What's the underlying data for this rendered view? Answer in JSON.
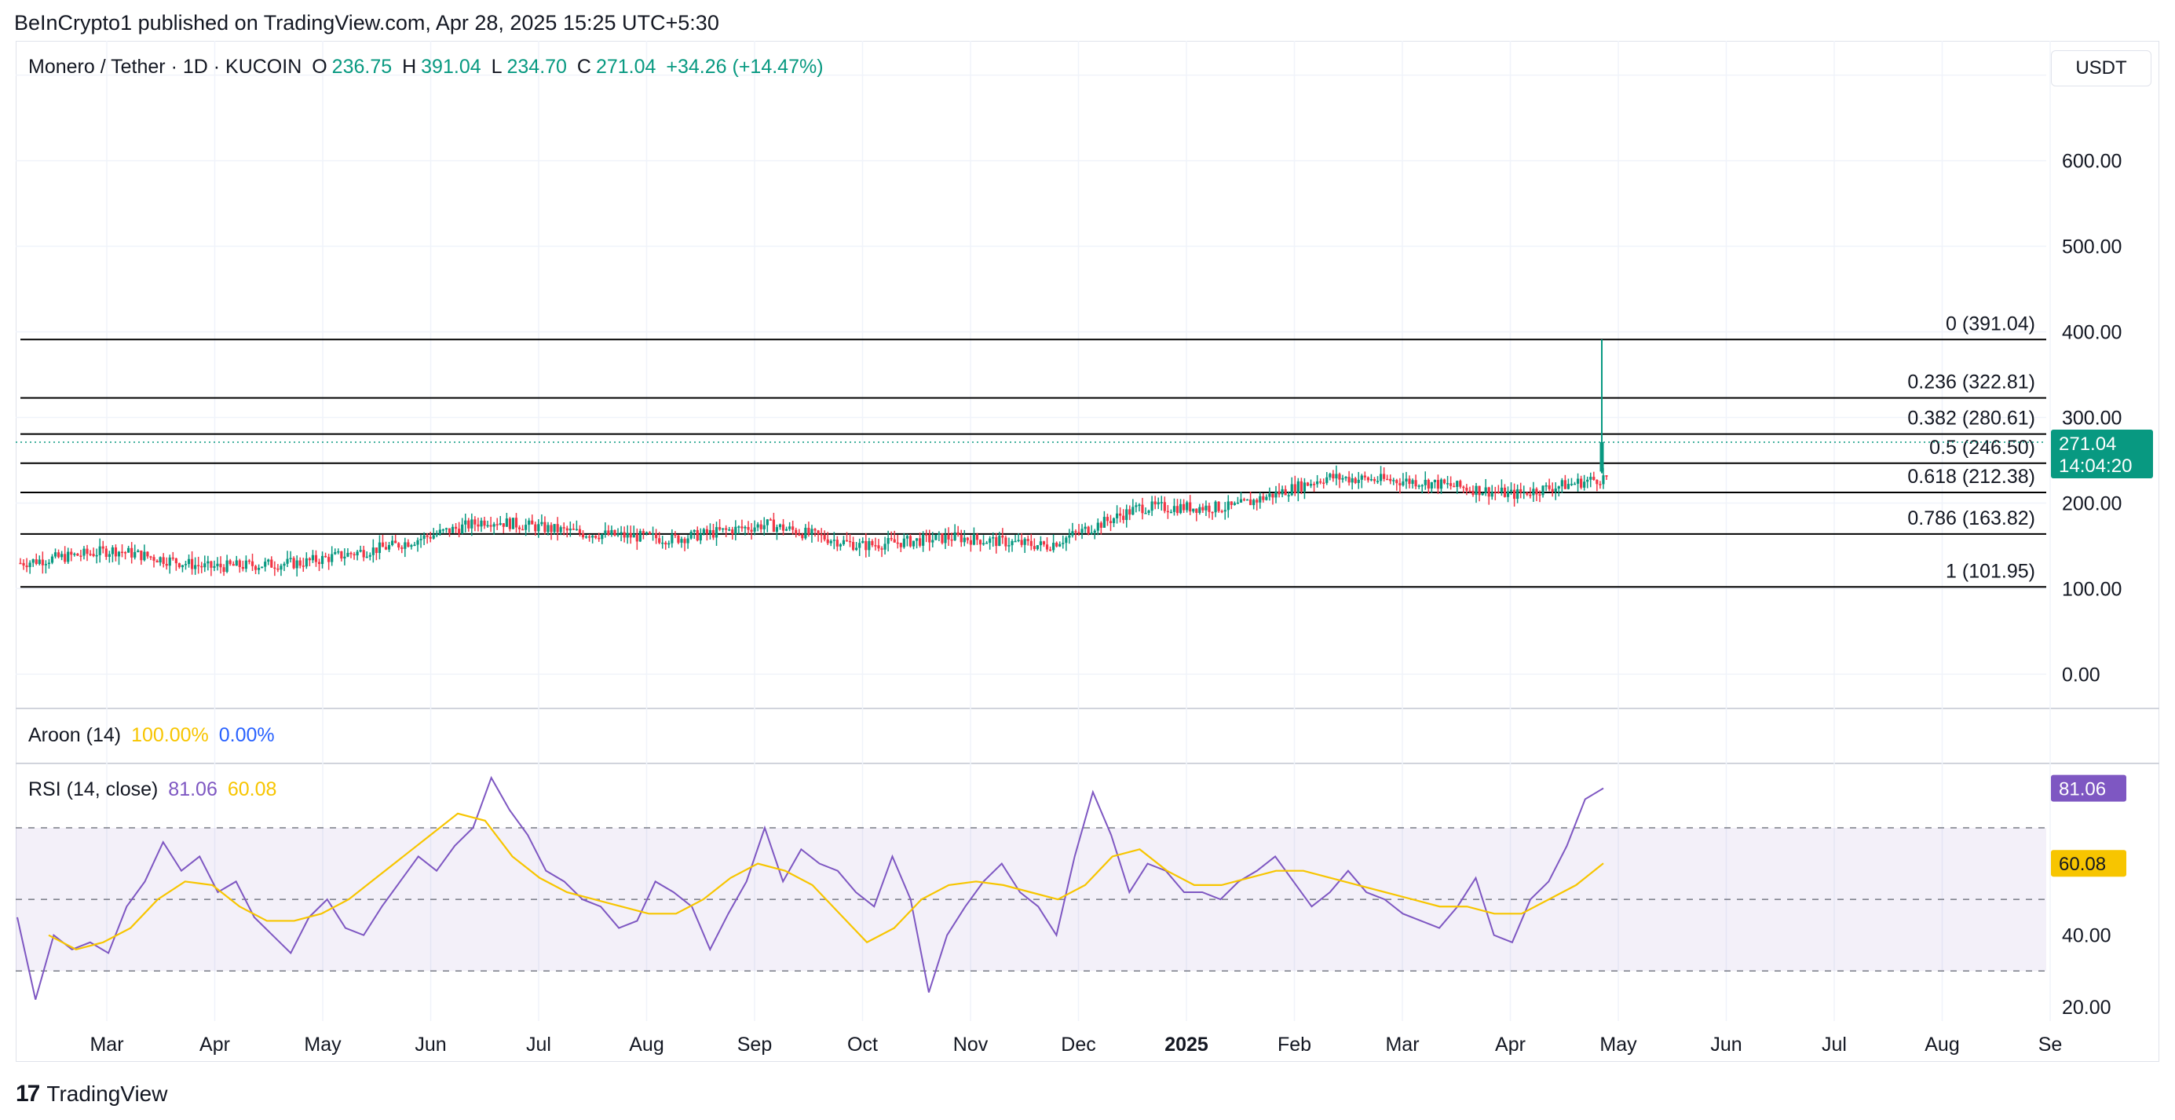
{
  "header": {
    "published_by": "BeInCrypto1 published on TradingView.com, Apr 28, 2025 15:25 UTC+5:30"
  },
  "symbol_bar": {
    "symbol": "Monero / Tether · 1D · KUCOIN",
    "open_label": "O",
    "open": "236.75",
    "high_label": "H",
    "high": "391.04",
    "low_label": "L",
    "low": "234.70",
    "close_label": "C",
    "close": "271.04",
    "change": "+34.26 (+14.47%)"
  },
  "currency": "USDT",
  "price_badge": {
    "price": "271.04",
    "countdown": "14:04:20",
    "color": "#089981"
  },
  "aroon": {
    "label": "Aroon (14)",
    "up": "100.00%",
    "down": "0.00%"
  },
  "rsi": {
    "label": "RSI (14, close)",
    "value": "81.06",
    "ma_value": "60.08"
  },
  "brand": {
    "name": "TradingView"
  },
  "colors": {
    "up": "#089981",
    "down": "#f23645",
    "rsi_line": "#7e57c2",
    "rsi_ma": "#f7c500",
    "aroon_up": "#f7c500",
    "aroon_down": "#2962ff",
    "fib_line": "#000000"
  },
  "chart_data": [
    {
      "type": "candlestick",
      "title": "Monero / Tether · 1D · KUCOIN",
      "y_ticks": [
        "0.00",
        "100.00",
        "200.00",
        "300.00",
        "400.00",
        "500.00",
        "600.00",
        "700.00"
      ],
      "ylim": [
        -40,
        740
      ],
      "x_ticks": [
        "Mar",
        "Apr",
        "May",
        "Jun",
        "Jul",
        "Aug",
        "Sep",
        "Oct",
        "Nov",
        "Dec",
        "2025",
        "Feb",
        "Mar",
        "Apr",
        "May",
        "Jun",
        "Jul",
        "Aug",
        "Se"
      ],
      "fibonacci": [
        {
          "label": "0 (391.04)",
          "value": 391.04
        },
        {
          "label": "0.236 (322.81)",
          "value": 322.81
        },
        {
          "label": "0.382 (280.61)",
          "value": 280.61
        },
        {
          "label": "0.5 (246.50)",
          "value": 246.5
        },
        {
          "label": "0.618 (212.38)",
          "value": 212.38
        },
        {
          "label": "0.786 (163.82)",
          "value": 163.82
        },
        {
          "label": "1 (101.95)",
          "value": 101.95
        }
      ],
      "price_path": [
        {
          "month": "Feb",
          "price": 130
        },
        {
          "month": "Mar",
          "price": 145
        },
        {
          "month": "Apr",
          "price": 125
        },
        {
          "month": "May",
          "price": 130
        },
        {
          "month": "Jun",
          "price": 150
        },
        {
          "month": "Jun",
          "price": 180
        },
        {
          "month": "Jul",
          "price": 165
        },
        {
          "month": "Aug",
          "price": 158
        },
        {
          "month": "Sep",
          "price": 175
        },
        {
          "month": "Oct",
          "price": 150
        },
        {
          "month": "Nov",
          "price": 160
        },
        {
          "month": "Nov",
          "price": 150
        },
        {
          "month": "Dec",
          "price": 195
        },
        {
          "month": "2025",
          "price": 195
        },
        {
          "month": "Feb",
          "price": 230
        },
        {
          "month": "Mar",
          "price": 225
        },
        {
          "month": "Apr",
          "price": 210
        },
        {
          "month": "Apr",
          "price": 230
        },
        {
          "month": "Apr",
          "price": 271.04
        }
      ],
      "last_candle": {
        "open": 236.75,
        "high": 391.04,
        "low": 234.7,
        "close": 271.04
      }
    },
    {
      "type": "line",
      "title": "Aroon (14)",
      "series": [
        {
          "name": "Aroon Up",
          "last": 100.0
        },
        {
          "name": "Aroon Down",
          "last": 0.0
        }
      ]
    },
    {
      "type": "line",
      "title": "RSI (14, close)",
      "y_ticks": [
        "20.00",
        "40.00",
        "60.00"
      ],
      "ylim": [
        16,
        88
      ],
      "bands": [
        30,
        50,
        70
      ],
      "series": [
        {
          "name": "RSI",
          "values": [
            45,
            22,
            40,
            36,
            38,
            35,
            48,
            55,
            66,
            58,
            62,
            52,
            55,
            45,
            40,
            35,
            45,
            50,
            42,
            40,
            48,
            55,
            62,
            58,
            65,
            70,
            84,
            75,
            68,
            58,
            55,
            50,
            48,
            42,
            44,
            55,
            52,
            48,
            36,
            46,
            55,
            70,
            55,
            64,
            60,
            58,
            52,
            48,
            62,
            50,
            24,
            40,
            48,
            55,
            60,
            52,
            48,
            40,
            62,
            80,
            68,
            52,
            60,
            58,
            52,
            52,
            50,
            55,
            58,
            62,
            55,
            48,
            52,
            58,
            52,
            50,
            46,
            44,
            42,
            48,
            56,
            40,
            38,
            50,
            55,
            65,
            78,
            81.06
          ],
          "last": 81.06
        },
        {
          "name": "RSI-based MA",
          "values": [
            40,
            36,
            38,
            42,
            50,
            55,
            54,
            48,
            44,
            44,
            46,
            50,
            56,
            62,
            68,
            74,
            72,
            62,
            56,
            52,
            50,
            48,
            46,
            46,
            50,
            56,
            60,
            58,
            54,
            46,
            38,
            42,
            50,
            54,
            55,
            54,
            52,
            50,
            54,
            62,
            64,
            58,
            54,
            54,
            56,
            58,
            58,
            56,
            54,
            52,
            50,
            48,
            48,
            46,
            46,
            50,
            54,
            60.08
          ],
          "last": 60.08
        }
      ]
    }
  ]
}
